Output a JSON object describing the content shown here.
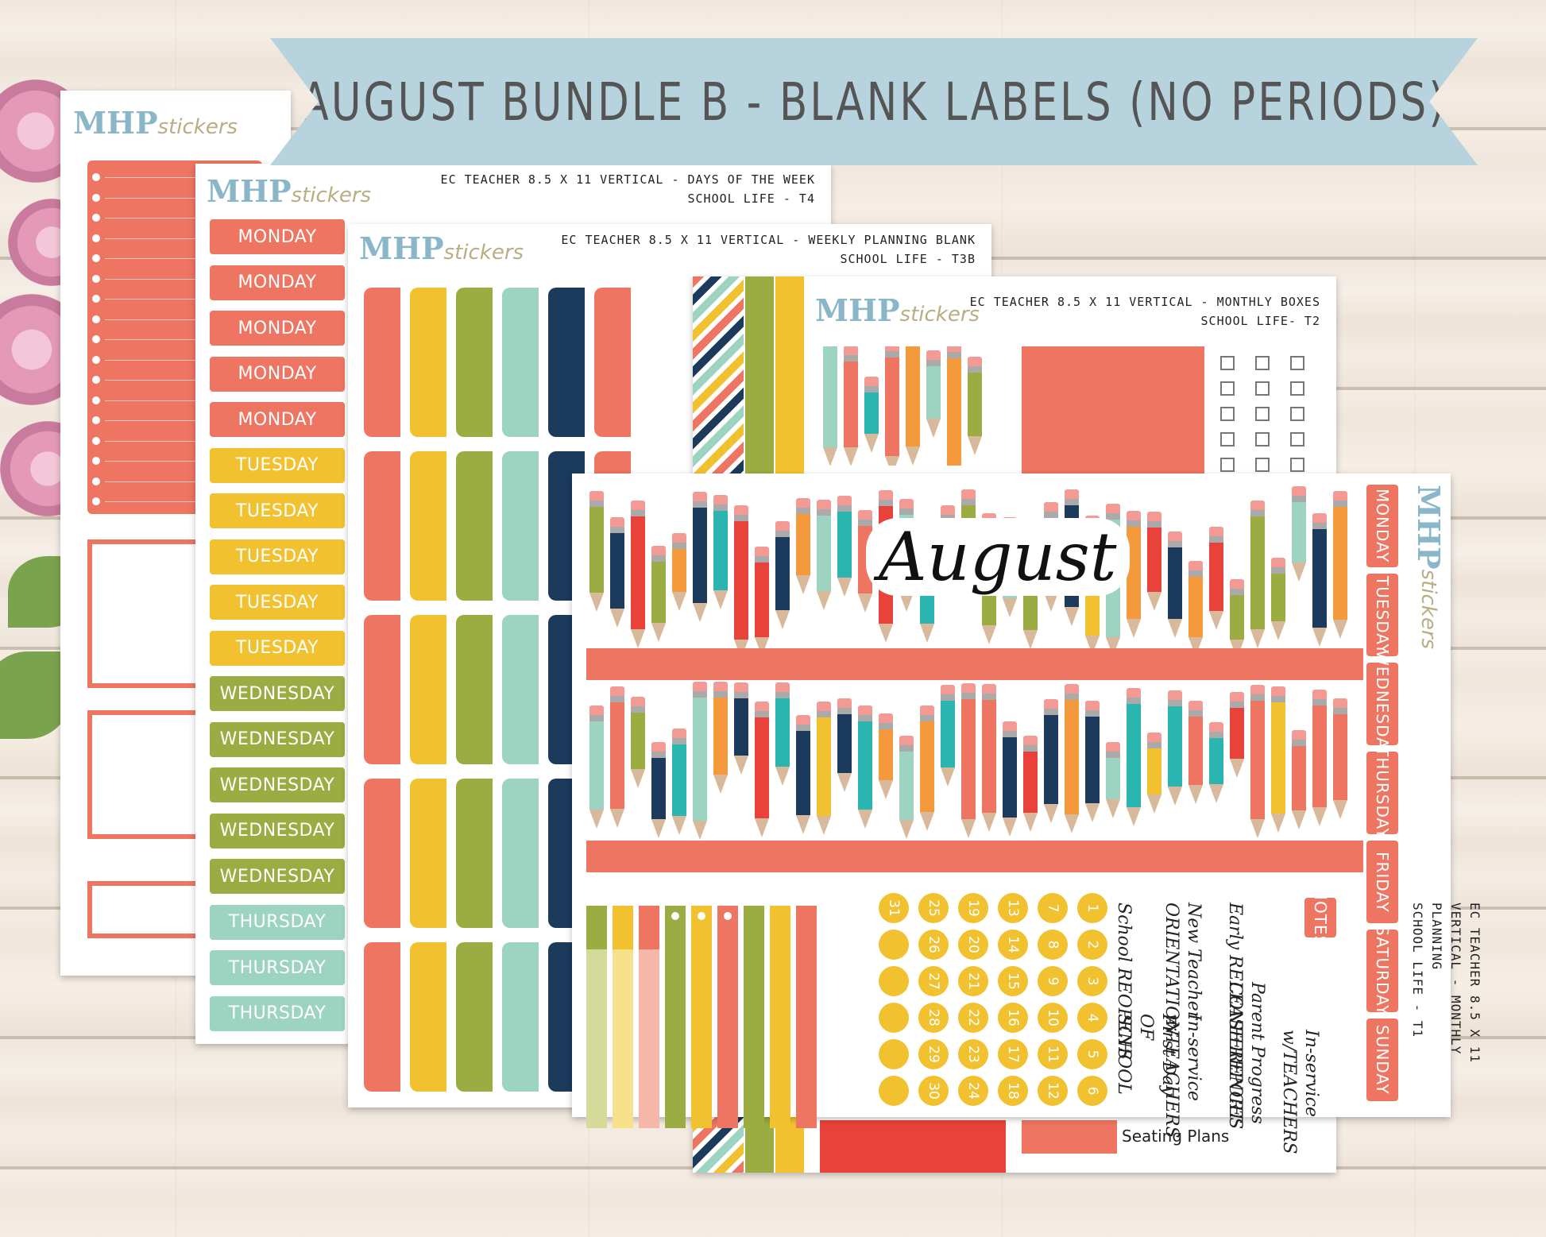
{
  "banner": {
    "title": "AUGUST BUNDLE B - BLANK LABELS (NO PERIODS)"
  },
  "brand": {
    "main": "MHP",
    "sub": "stickers"
  },
  "sheet2": {
    "title_line1": "EC TEACHER 8.5 X 11 VERTICAL - DAYS OF THE WEEK",
    "title_line2": "SCHOOL LIFE - T4",
    "days": [
      {
        "label": "MONDAY",
        "color": "#ee7562"
      },
      {
        "label": "MONDAY",
        "color": "#ee7562"
      },
      {
        "label": "MONDAY",
        "color": "#ee7562"
      },
      {
        "label": "MONDAY",
        "color": "#ee7562"
      },
      {
        "label": "MONDAY",
        "color": "#ee7562"
      },
      {
        "label": "TUESDAY",
        "color": "#f1c12f"
      },
      {
        "label": "TUESDAY",
        "color": "#f1c12f"
      },
      {
        "label": "TUESDAY",
        "color": "#f1c12f"
      },
      {
        "label": "TUESDAY",
        "color": "#f1c12f"
      },
      {
        "label": "TUESDAY",
        "color": "#f1c12f"
      },
      {
        "label": "WEDNESDAY",
        "color": "#9aac42"
      },
      {
        "label": "WEDNESDAY",
        "color": "#9aac42"
      },
      {
        "label": "WEDNESDAY",
        "color": "#9aac42"
      },
      {
        "label": "WEDNESDAY",
        "color": "#9aac42"
      },
      {
        "label": "WEDNESDAY",
        "color": "#9aac42"
      },
      {
        "label": "THURSDAY",
        "color": "#9cd3c1"
      },
      {
        "label": "THURSDAY",
        "color": "#9cd3c1"
      },
      {
        "label": "THURSDAY",
        "color": "#9cd3c1"
      }
    ]
  },
  "sheet3": {
    "title_line1": "EC TEACHER 8.5 X 11 VERTICAL - WEEKLY PLANNING BLANK",
    "title_line2": "SCHOOL LIFE - T3B",
    "column_colors": [
      "#ee7562",
      "#f1c12f",
      "#9aac42",
      "#9cd3c1",
      "#1b3a5c",
      "#ee7562"
    ]
  },
  "sheet4": {
    "title_line1": "EC TEACHER 8.5 X 11 VERTICAL - MONTHLY BOXES",
    "title_line2": "SCHOOL LIFE- T2",
    "footer_label": "Seating Plans"
  },
  "sheet5": {
    "month": "August",
    "side_title_line1": "EC TEACHER 8.5 X 11 VERTICAL - MONTHLY PLANNING",
    "side_title_line2": "SCHOOL LIFE - T1",
    "notes_label": "NOTES",
    "weekdays": [
      "MONDAY",
      "TUESDAY",
      "WEDNESDAY",
      "THURSDAY",
      "FRIDAY",
      "SATURDAY",
      "SUNDAY"
    ],
    "numbers": [
      [
        "31",
        "25",
        "19",
        "13",
        "7",
        "1"
      ],
      [
        "",
        "26",
        "20",
        "14",
        "8",
        "2"
      ],
      [
        "",
        "27",
        "21",
        "15",
        "9",
        "3"
      ],
      [
        "",
        "28",
        "22",
        "16",
        "10",
        "4"
      ],
      [
        "",
        "29",
        "23",
        "17",
        "11",
        "5"
      ],
      [
        "",
        "30",
        "24",
        "18",
        "12",
        "6"
      ]
    ],
    "events": [
      {
        "text": "School REOPENS"
      },
      {
        "text": "First Day OF SCHOOL"
      },
      {
        "text": "New Teacher ORIENTATION"
      },
      {
        "text": "In-service w/TEACHERS"
      },
      {
        "text": "Early RELEASE"
      },
      {
        "text": "Parent CONFERENCES"
      },
      {
        "text": "Progress REPORT"
      },
      {
        "text": "In-service w/TEACHERS"
      }
    ],
    "pencil_colors": [
      "#e8423a",
      "#1b3a5c",
      "#f1c12f",
      "#9aac42",
      "#2ab5b0",
      "#f59a3c",
      "#ee7562",
      "#9cd3c1"
    ]
  }
}
